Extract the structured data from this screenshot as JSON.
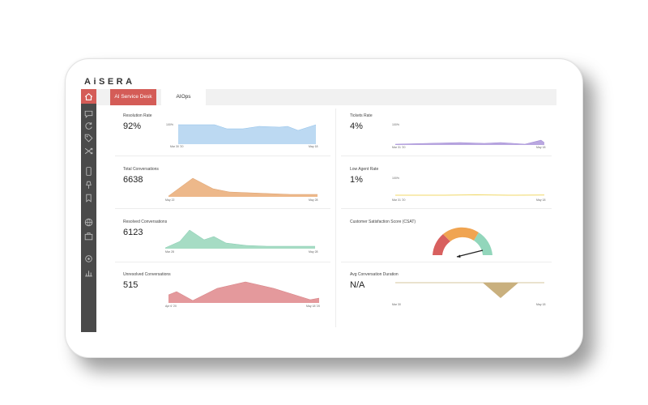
{
  "brand": {
    "logo_text": "AiSERA"
  },
  "tabs": [
    {
      "label": "AI Service Desk",
      "active": true
    },
    {
      "label": "AIOps",
      "active": false
    }
  ],
  "sidebar": {
    "icons": [
      "home-icon",
      "chat-icon",
      "refresh-icon",
      "tag-icon",
      "shuffle-icon",
      "mobile-icon",
      "pin-icon",
      "bookmark-icon",
      "globe-icon",
      "briefcase-icon",
      "gear-icon",
      "chart-icon"
    ]
  },
  "cards": {
    "resolution_rate": {
      "title": "Resolution Rate",
      "value": "92%",
      "y_label": "100%",
      "x_start": "Mar 30 '20",
      "x_end": "May 18"
    },
    "total_conversations": {
      "title": "Total Conversations",
      "value": "6638",
      "x_start": "May 22",
      "x_end": "May 28"
    },
    "resolved_conversations": {
      "title": "Resolved Conversations",
      "value": "6123",
      "x_start": "Mar 28",
      "x_end": "May 28"
    },
    "unresolved_conversations": {
      "title": "Unresolved Conversations",
      "value": "515",
      "x_start": "Apr 6 '20",
      "x_end": "May 18 '20"
    },
    "tickets_rate": {
      "title": "Tickets Rate",
      "value": "4%",
      "y_label": "100%",
      "x_start": "Mar 31 '20",
      "x_end": "May 18"
    },
    "low_agent_rate": {
      "title": "Low Agent Rate",
      "value": "1%",
      "y_label": "100%",
      "x_start": "Mar 31 '20",
      "x_end": "May 18"
    },
    "csat": {
      "title": "Customer Satisfaction Score (CSAT)"
    },
    "avg_duration": {
      "title": "Avg Conversation Duration",
      "value": "N/A",
      "x_start": "Mar 30",
      "x_end": "May 18"
    }
  },
  "colors": {
    "accent": "#d45c57",
    "sidebar": "#4a4a4a",
    "blue": "#bcd9f2",
    "orange": "#edb88a",
    "green": "#a6dcc4",
    "red": "#e4999c",
    "purple": "#b9a7e0",
    "yellow": "#f3e59b",
    "olive": "#c9b07e"
  }
}
